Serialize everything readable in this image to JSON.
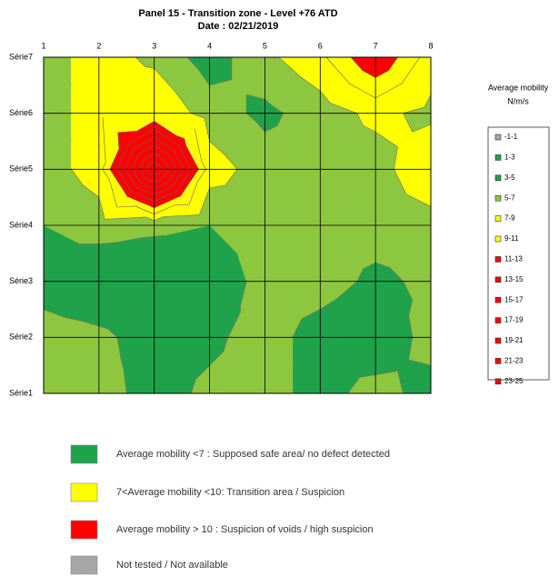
{
  "chart_data": {
    "type": "contour",
    "title": "Panel 15 - Transition zone - Level +76 ATD",
    "subtitle": "Date : 02/21/2019",
    "x": [
      1,
      2,
      3,
      4,
      5,
      6,
      7,
      8
    ],
    "xlim": [
      1,
      8
    ],
    "xticks": [
      1,
      2,
      3,
      4,
      5,
      6,
      7,
      8
    ],
    "categories": [
      "Série1",
      "Série2",
      "Série3",
      "Série4",
      "Série5",
      "Série6",
      "Série7"
    ],
    "values": [
      [
        6,
        6,
        4,
        5.5,
        6,
        4,
        6,
        4
      ],
      [
        6,
        5.5,
        4,
        4.5,
        6,
        4,
        3,
        6
      ],
      [
        4,
        3,
        3,
        3,
        6,
        6,
        4.5,
        5.5
      ],
      [
        5,
        6,
        5.5,
        5,
        6,
        6,
        6,
        6
      ],
      [
        6,
        8,
        23,
        8,
        6,
        6,
        6,
        9
      ],
      [
        5.5,
        8.5,
        9,
        6,
        4.5,
        6,
        7.5,
        6.5
      ],
      [
        6,
        8,
        6.5,
        4,
        6.5,
        8.5,
        13,
        8
      ]
    ],
    "levels": [
      -1,
      1,
      3,
      5,
      7,
      9,
      11,
      13,
      15,
      17,
      19,
      21,
      23,
      25
    ],
    "legend": {
      "title": "Average mobility",
      "unit": "N/m/s",
      "items": [
        {
          "label": "-1-1",
          "color": "#a6a6a6"
        },
        {
          "label": "1-3",
          "color": "#1fa24a"
        },
        {
          "label": "3-5",
          "color": "#1fa24a"
        },
        {
          "label": "5-7",
          "color": "#8dc63f"
        },
        {
          "label": "7-9",
          "color": "#ffff00"
        },
        {
          "label": "9-11",
          "color": "#ffff00"
        },
        {
          "label": "11-13",
          "color": "#ff0000"
        },
        {
          "label": "13-15",
          "color": "#ff0000"
        },
        {
          "label": "15-17",
          "color": "#ff0000"
        },
        {
          "label": "17-19",
          "color": "#ff0000"
        },
        {
          "label": "19-21",
          "color": "#ff0000"
        },
        {
          "label": "21-23",
          "color": "#ff0000"
        },
        {
          "label": "23-25",
          "color": "#ff0000"
        }
      ]
    },
    "zone_legend": [
      {
        "label": "Average mobility <7 : Supposed safe area/ no defect detected",
        "color": "#1fa24a"
      },
      {
        "label": "7<Average mobility <10: Transition area / Suspicion",
        "color": "#ffff00"
      },
      {
        "label": "Average mobility > 10 : Suspicion of voids / high suspicion",
        "color": "#ff0000"
      },
      {
        "label": "Not tested / Not available",
        "color": "#a6a6a6"
      }
    ]
  }
}
